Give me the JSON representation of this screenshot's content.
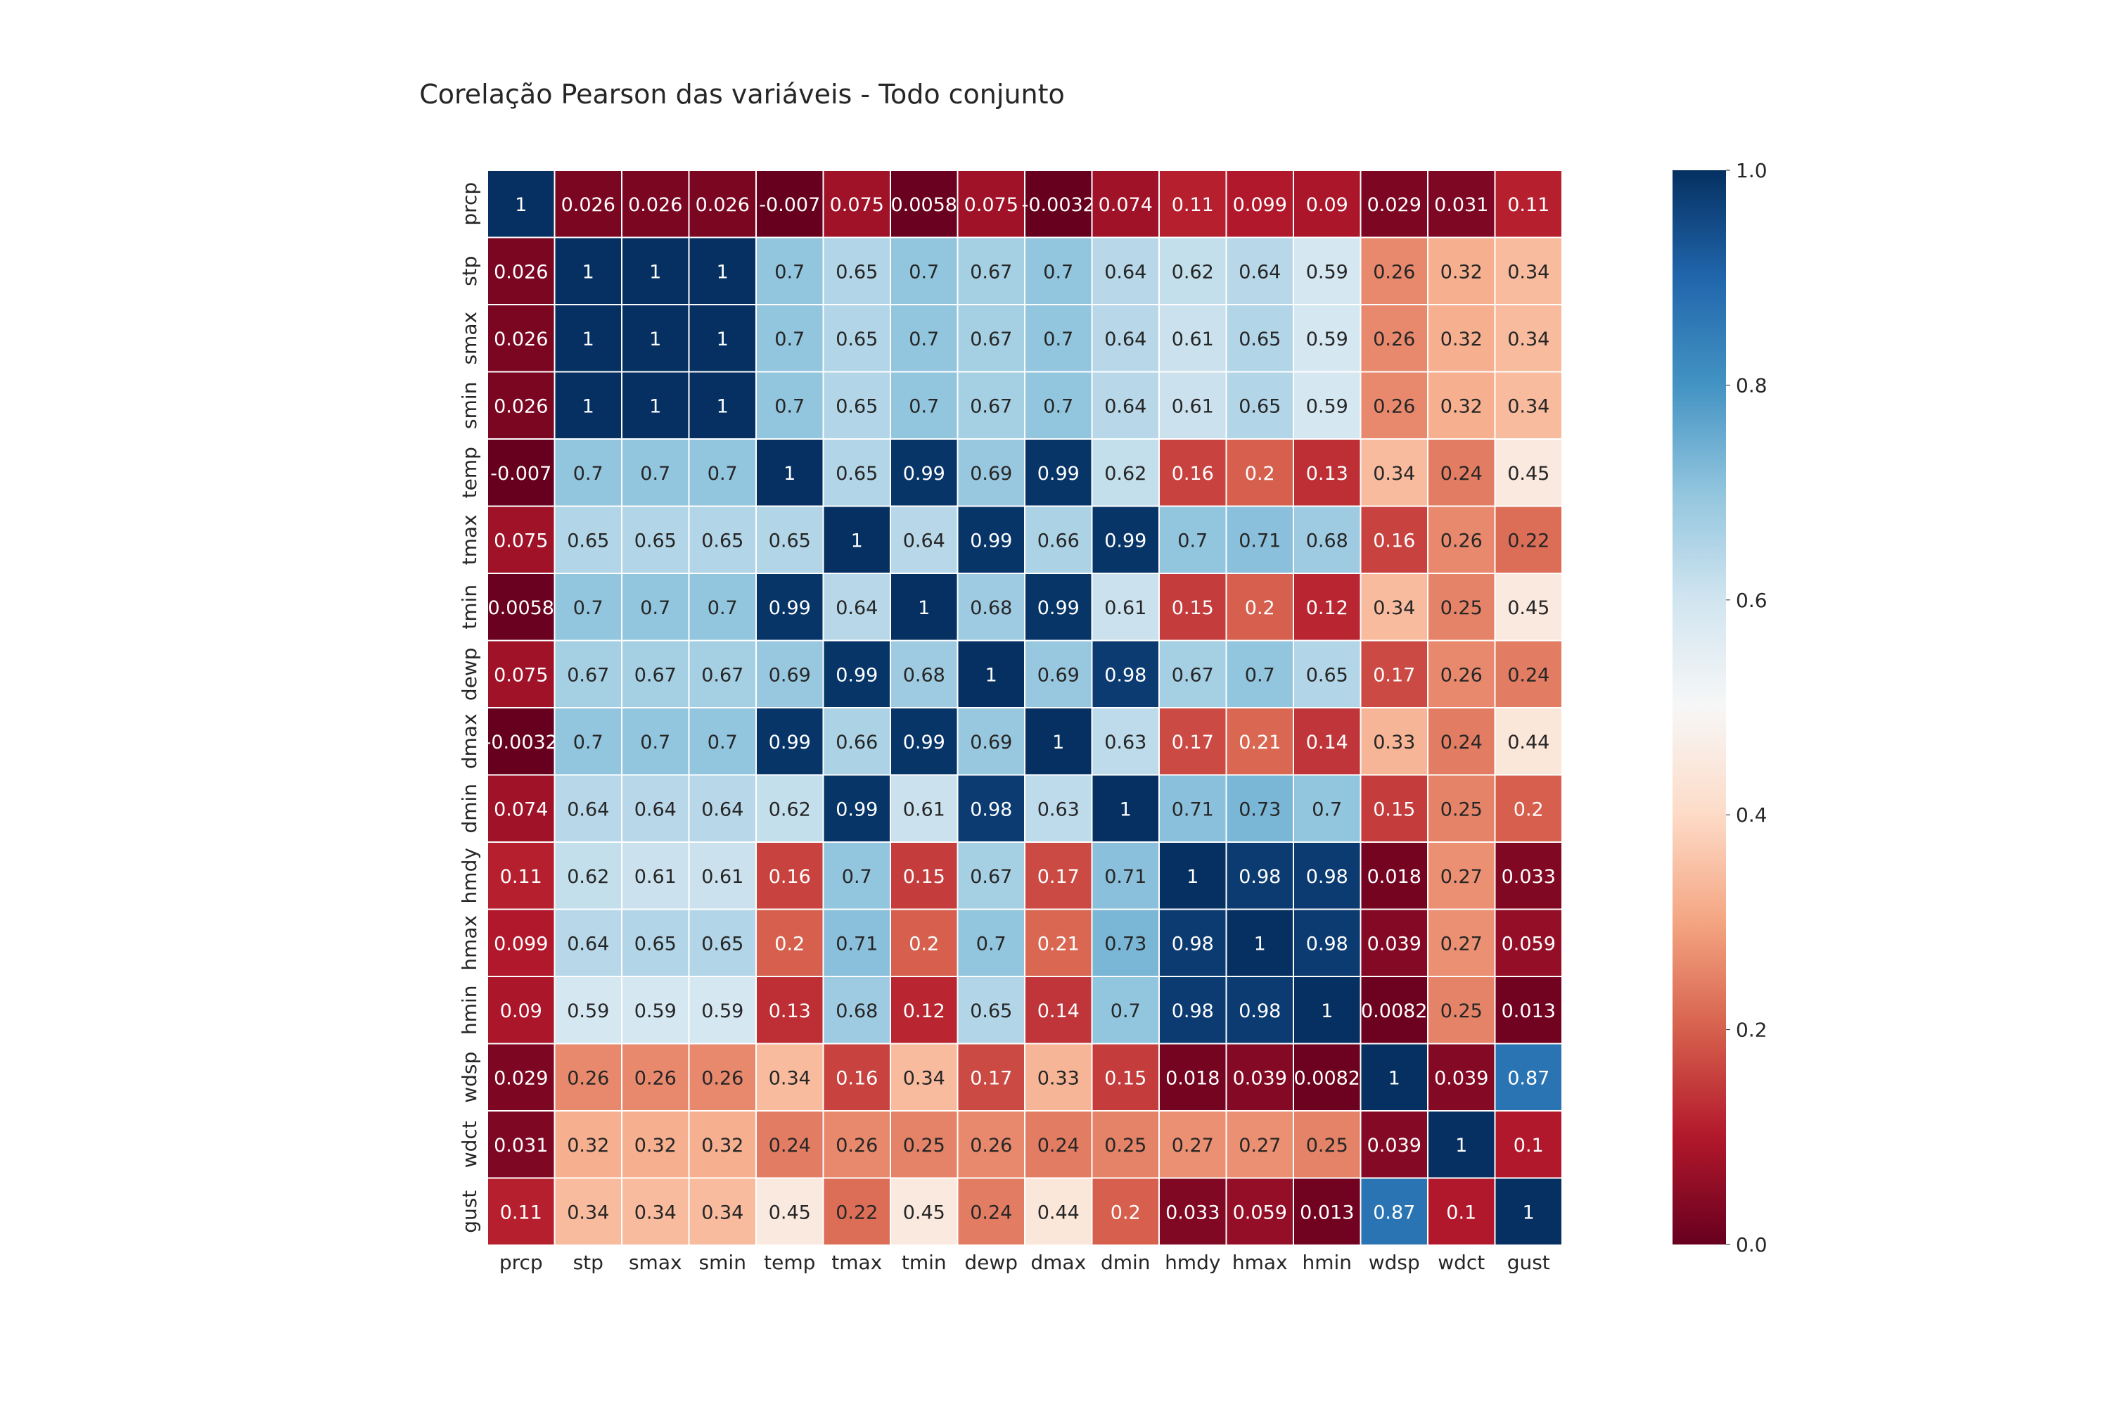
{
  "chart_data": {
    "type": "heatmap",
    "title": "Corelação Pearson das variáveis - Todo conjunto",
    "x_labels": [
      "prcp",
      "stp",
      "smax",
      "smin",
      "temp",
      "tmax",
      "tmin",
      "dewp",
      "dmax",
      "dmin",
      "hmdy",
      "hmax",
      "hmin",
      "wdsp",
      "wdct",
      "gust"
    ],
    "y_labels": [
      "prcp",
      "stp",
      "smax",
      "smin",
      "temp",
      "tmax",
      "tmin",
      "dewp",
      "dmax",
      "dmin",
      "hmdy",
      "hmax",
      "hmin",
      "wdsp",
      "wdct",
      "gust"
    ],
    "values": [
      [
        1,
        0.026,
        0.026,
        0.026,
        -0.007,
        0.075,
        0.0058,
        0.075,
        -0.0032,
        0.074,
        0.11,
        0.099,
        0.09,
        0.029,
        0.031,
        0.11
      ],
      [
        0.026,
        1,
        1,
        1,
        0.7,
        0.65,
        0.7,
        0.67,
        0.7,
        0.64,
        0.62,
        0.64,
        0.59,
        0.26,
        0.32,
        0.34
      ],
      [
        0.026,
        1,
        1,
        1,
        0.7,
        0.65,
        0.7,
        0.67,
        0.7,
        0.64,
        0.61,
        0.65,
        0.59,
        0.26,
        0.32,
        0.34
      ],
      [
        0.026,
        1,
        1,
        1,
        0.7,
        0.65,
        0.7,
        0.67,
        0.7,
        0.64,
        0.61,
        0.65,
        0.59,
        0.26,
        0.32,
        0.34
      ],
      [
        -0.007,
        0.7,
        0.7,
        0.7,
        1,
        0.65,
        0.99,
        0.69,
        0.99,
        0.62,
        0.16,
        0.2,
        0.13,
        0.34,
        0.24,
        0.45
      ],
      [
        0.075,
        0.65,
        0.65,
        0.65,
        0.65,
        1,
        0.64,
        0.99,
        0.66,
        0.99,
        0.7,
        0.71,
        0.68,
        0.16,
        0.26,
        0.22
      ],
      [
        0.0058,
        0.7,
        0.7,
        0.7,
        0.99,
        0.64,
        1,
        0.68,
        0.99,
        0.61,
        0.15,
        0.2,
        0.12,
        0.34,
        0.25,
        0.45
      ],
      [
        0.075,
        0.67,
        0.67,
        0.67,
        0.69,
        0.99,
        0.68,
        1,
        0.69,
        0.98,
        0.67,
        0.7,
        0.65,
        0.17,
        0.26,
        0.24
      ],
      [
        -0.0032,
        0.7,
        0.7,
        0.7,
        0.99,
        0.66,
        0.99,
        0.69,
        1,
        0.63,
        0.17,
        0.21,
        0.14,
        0.33,
        0.24,
        0.44
      ],
      [
        0.074,
        0.64,
        0.64,
        0.64,
        0.62,
        0.99,
        0.61,
        0.98,
        0.63,
        1,
        0.71,
        0.73,
        0.7,
        0.15,
        0.25,
        0.2
      ],
      [
        0.11,
        0.62,
        0.61,
        0.61,
        0.16,
        0.7,
        0.15,
        0.67,
        0.17,
        0.71,
        1,
        0.98,
        0.98,
        0.018,
        0.27,
        0.033
      ],
      [
        0.099,
        0.64,
        0.65,
        0.65,
        0.2,
        0.71,
        0.2,
        0.7,
        0.21,
        0.73,
        0.98,
        1,
        0.98,
        0.039,
        0.27,
        0.059
      ],
      [
        0.09,
        0.59,
        0.59,
        0.59,
        0.13,
        0.68,
        0.12,
        0.65,
        0.14,
        0.7,
        0.98,
        0.98,
        1,
        0.0082,
        0.25,
        0.013
      ],
      [
        0.029,
        0.26,
        0.26,
        0.26,
        0.34,
        0.16,
        0.34,
        0.17,
        0.33,
        0.15,
        0.018,
        0.039,
        0.0082,
        1,
        0.039,
        0.87
      ],
      [
        0.031,
        0.32,
        0.32,
        0.32,
        0.24,
        0.26,
        0.25,
        0.26,
        0.24,
        0.25,
        0.27,
        0.27,
        0.25,
        0.039,
        1,
        0.1
      ],
      [
        0.11,
        0.34,
        0.34,
        0.34,
        0.45,
        0.22,
        0.45,
        0.24,
        0.44,
        0.2,
        0.033,
        0.059,
        0.013,
        0.87,
        0.1,
        1
      ]
    ],
    "value_range": [
      0.0,
      1.0
    ],
    "colormap": "RdBu",
    "colormap_stops": [
      "#67001f",
      "#b2182b",
      "#d6604d",
      "#f4a582",
      "#fddbc7",
      "#f7f7f7",
      "#d1e5f0",
      "#92c5de",
      "#4393c3",
      "#2166ac",
      "#053061"
    ],
    "colorbar": {
      "ticks": [
        "0.0",
        "0.2",
        "0.4",
        "0.6",
        "0.8",
        "1.0"
      ],
      "position": "right"
    },
    "annotated": true,
    "grid": false
  }
}
